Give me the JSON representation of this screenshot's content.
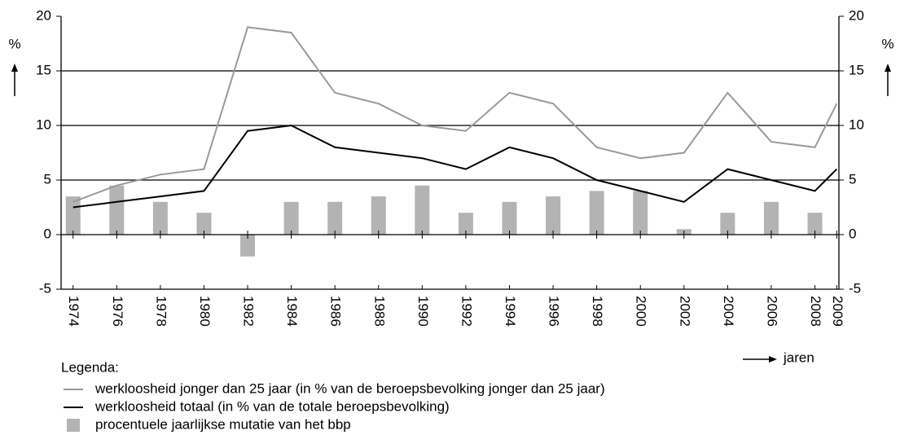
{
  "chart_data": {
    "type": "combo",
    "y_label": "%",
    "y2_label": "%",
    "x_label": "jaren",
    "legend_title": "Legenda:",
    "x": [
      1974,
      1976,
      1978,
      1980,
      1982,
      1984,
      1986,
      1988,
      1990,
      1992,
      1994,
      1996,
      1998,
      2000,
      2002,
      2004,
      2006,
      2008,
      2009
    ],
    "xticks": [
      1974,
      1976,
      1978,
      1980,
      1982,
      1984,
      1986,
      1988,
      1990,
      1992,
      1994,
      1996,
      1998,
      2000,
      2002,
      2004,
      2006,
      2008,
      2009
    ],
    "xlim": [
      1973.45,
      2009.1
    ],
    "ylim": [
      -5,
      20
    ],
    "yticks": [
      -5,
      0,
      5,
      10,
      15,
      20
    ],
    "y2lim": [
      -5,
      20
    ],
    "y2ticks": [
      -5,
      0,
      5,
      10,
      15,
      20
    ],
    "grid": true,
    "series": [
      {
        "name": "werkloosheid jonger dan 25 jaar (in % van de beroepsbevolking jonger dan 25 jaar)",
        "type": "line",
        "color": "#999999",
        "values": [
          3,
          4.5,
          5.5,
          6,
          19,
          18.5,
          13,
          12,
          10,
          9.5,
          13,
          12,
          8,
          7,
          7.5,
          13,
          8.5,
          8,
          12
        ]
      },
      {
        "name": "werkloosheid totaal (in % van de totale beroepsbevolking)",
        "type": "line",
        "color": "#000000",
        "values": [
          2.5,
          3,
          3.5,
          4,
          9.5,
          10,
          8,
          7.5,
          7,
          6,
          8,
          7,
          5,
          4,
          3,
          6,
          5,
          4,
          6
        ]
      },
      {
        "name": "procentuele jaarlijkse mutatie van het bbp",
        "type": "bar",
        "color": "#b3b3b3",
        "values": [
          3.5,
          4.5,
          3,
          2,
          -2,
          3,
          3,
          3.5,
          4.5,
          2,
          3,
          3.5,
          4,
          4,
          0.5,
          2,
          3,
          2,
          null
        ]
      }
    ]
  }
}
